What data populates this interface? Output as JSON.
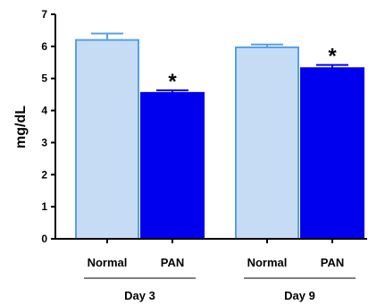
{
  "chart_data": {
    "type": "bar",
    "title": "",
    "xlabel": "",
    "ylabel": "mg/dL",
    "ylim": [
      0,
      7
    ],
    "yticks": [
      0,
      1,
      2,
      3,
      4,
      5,
      6,
      7
    ],
    "grid": false,
    "groups": [
      {
        "label": "Day 3",
        "bars": [
          {
            "category": "Normal",
            "value": 6.2,
            "error": 0.2,
            "significance": "",
            "fill": "#c6dcf5",
            "stroke": "#55a0ec"
          },
          {
            "category": "PAN",
            "value": 4.55,
            "error": 0.08,
            "significance": "*",
            "fill": "#0000ee",
            "stroke": "#0000ee"
          }
        ]
      },
      {
        "label": "Day 9",
        "bars": [
          {
            "category": "Normal",
            "value": 5.97,
            "error": 0.09,
            "significance": "",
            "fill": "#c6dcf5",
            "stroke": "#55a0ec"
          },
          {
            "category": "PAN",
            "value": 5.32,
            "error": 0.1,
            "significance": "*",
            "fill": "#0000ee",
            "stroke": "#0000ee"
          }
        ]
      }
    ]
  }
}
